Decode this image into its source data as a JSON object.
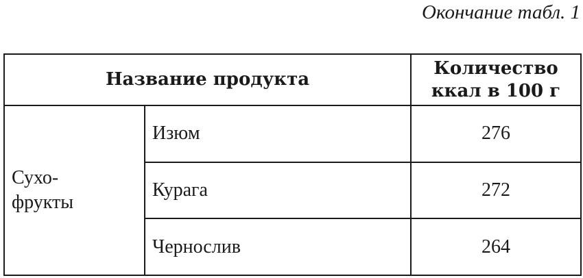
{
  "caption": "Окончание табл. 1",
  "table": {
    "headers": {
      "name": "Название продукта",
      "kcal_line1": "Количество",
      "kcal_line2": "ккал в 100 г"
    },
    "group": {
      "line1": "Сухо-",
      "line2": "фрукты"
    },
    "rows": [
      {
        "name": "Изюм",
        "kcal": "276"
      },
      {
        "name": "Курага",
        "kcal": "272"
      },
      {
        "name": "Чернослив",
        "kcal": "264"
      }
    ]
  }
}
